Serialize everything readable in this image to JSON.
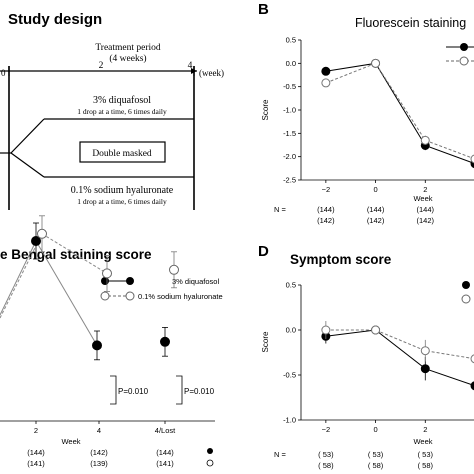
{
  "figure": {
    "panel_a": {
      "title": "Study design",
      "period_label_1": "Treatment period",
      "period_label_2": "(4 weeks)",
      "tick_0": "0",
      "tick_2": "2",
      "tick_4": "4",
      "week_label": "(week)",
      "arm1_name": "3% diquafosol",
      "arm1_dose": "1 drop at a time, 6 times daily",
      "box_label": "Double masked",
      "arm2_name": "0.1% sodium hyaluronate",
      "arm2_dose": "1 drop at a time, 6 times daily"
    },
    "panel_b": {
      "letter": "B",
      "title": "Fluorescein staining",
      "n_label": "N ="
    },
    "panel_c": {
      "title": "e Bengal staining score",
      "legend_1": "3% diquafosol",
      "legend_2": "0.1% sodium hyaluronate",
      "p_label_1": "P=0.010",
      "p_label_2": "P=0.010"
    },
    "panel_d": {
      "letter": "D",
      "title": "Symptom score",
      "n_label": "N ="
    }
  },
  "chart_data": [
    {
      "id": "B",
      "type": "line",
      "title": "Fluorescein staining",
      "xlabel": "Week",
      "ylabel": "Score",
      "ylim": [
        -2.5,
        0.5
      ],
      "yticks": [
        -2.5,
        -2.0,
        -1.5,
        -1.0,
        -0.5,
        0.0,
        0.5
      ],
      "ytick_labels": [
        "-2.5",
        "-2.0",
        "-1.5",
        "-1.0",
        "-0.5",
        "0.0",
        "0.5"
      ],
      "xlim": [
        -3,
        4
      ],
      "xticks": [
        -2,
        0,
        2
      ],
      "xtick_labels": [
        "−2",
        "0",
        "2"
      ],
      "series": [
        {
          "marker": "filled",
          "style": "solid",
          "x": [
            -2,
            0,
            2,
            4
          ],
          "y": [
            -0.17,
            0.0,
            -1.76,
            -2.15
          ],
          "err": [
            0.08,
            0.04,
            0.1,
            0.1
          ],
          "n": [
            "(144)",
            "(144)",
            "(144)"
          ]
        },
        {
          "marker": "open",
          "style": "dashed",
          "x": [
            -2,
            0,
            2,
            4
          ],
          "y": [
            -0.42,
            0.0,
            -1.65,
            -2.05
          ],
          "err": [
            0.08,
            0.04,
            0.1,
            0.1
          ],
          "n": [
            "(142)",
            "(142)",
            "(142)"
          ]
        }
      ]
    },
    {
      "id": "C",
      "type": "line",
      "title": "e Bengal staining score",
      "xlabel": "Week",
      "ylabel": "",
      "ylim": [
        0,
        4
      ],
      "xtick_labels": [
        "2",
        "4",
        "4/Lost"
      ],
      "legend": [
        "3% diquafosol",
        "0.1% sodium hyaluronate"
      ],
      "annotations": [
        "P=0.010",
        "P=0.010"
      ],
      "series": [
        {
          "name": "3% diquafosol",
          "marker": "filled",
          "style": "solid",
          "x": [
            "2",
            "4",
            "4/Lost"
          ],
          "y": [
            2.5,
            1.05,
            1.1
          ],
          "err": [
            0.25,
            0.2,
            0.2
          ],
          "n": [
            "",
            "(142)",
            "(144)"
          ]
        },
        {
          "name": "0.1% sodium hyaluronate",
          "marker": "open",
          "style": "dashed",
          "x": [
            "2",
            "4",
            "4/Lost"
          ],
          "y": [
            2.6,
            2.05,
            2.1
          ],
          "err": [
            0.25,
            0.25,
            0.25
          ],
          "n": [
            "(141)",
            "(139)",
            "(141)"
          ]
        }
      ],
      "n_row_1": [
        "(144)",
        "(142)",
        "(144)"
      ]
    },
    {
      "id": "D",
      "type": "line",
      "title": "Symptom score",
      "xlabel": "Week",
      "ylabel": "Score",
      "ylim": [
        -1.0,
        0.5
      ],
      "yticks": [
        -1.0,
        -0.5,
        0.0,
        0.5
      ],
      "ytick_labels": [
        "-1.0",
        "-0.5",
        "0.0",
        "0.5"
      ],
      "xlim": [
        -3,
        4
      ],
      "xticks": [
        -2,
        0,
        2
      ],
      "xtick_labels": [
        "−2",
        "0",
        "2"
      ],
      "series": [
        {
          "marker": "filled",
          "style": "solid",
          "x": [
            -2,
            0,
            2,
            4
          ],
          "y": [
            -0.07,
            0.0,
            -0.43,
            -0.62
          ],
          "err": [
            0.08,
            0.03,
            0.13,
            0.12
          ],
          "n": [
            "( 53)",
            "( 53)",
            "( 53)"
          ]
        },
        {
          "marker": "open",
          "style": "dashed",
          "x": [
            -2,
            0,
            2,
            4
          ],
          "y": [
            0.0,
            0.0,
            -0.23,
            -0.32
          ],
          "err": [
            0.1,
            0.03,
            0.12,
            0.12
          ],
          "n": [
            "( 58)",
            "( 58)",
            "( 58)"
          ]
        }
      ]
    }
  ]
}
